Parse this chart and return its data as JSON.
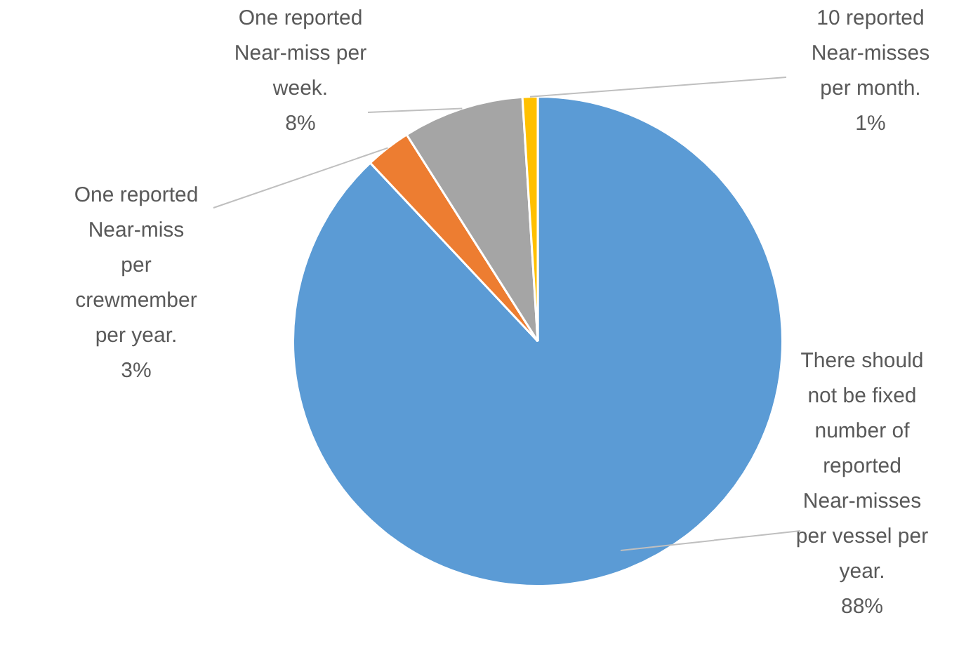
{
  "chart_data": {
    "type": "pie",
    "categories": [
      "There should not be fixed number of reported Near-misses per vessel per year.",
      "One reported Near-miss per crewmember per year.",
      "One reported Near-miss per week.",
      "10 reported Near-misses per month."
    ],
    "values": [
      88,
      3,
      8,
      1
    ],
    "value_labels": [
      "88%",
      "3%",
      "8%",
      "1%"
    ],
    "colors": [
      "#5b9bd5",
      "#ed7d31",
      "#a5a5a5",
      "#ffc000"
    ],
    "legend": false
  }
}
